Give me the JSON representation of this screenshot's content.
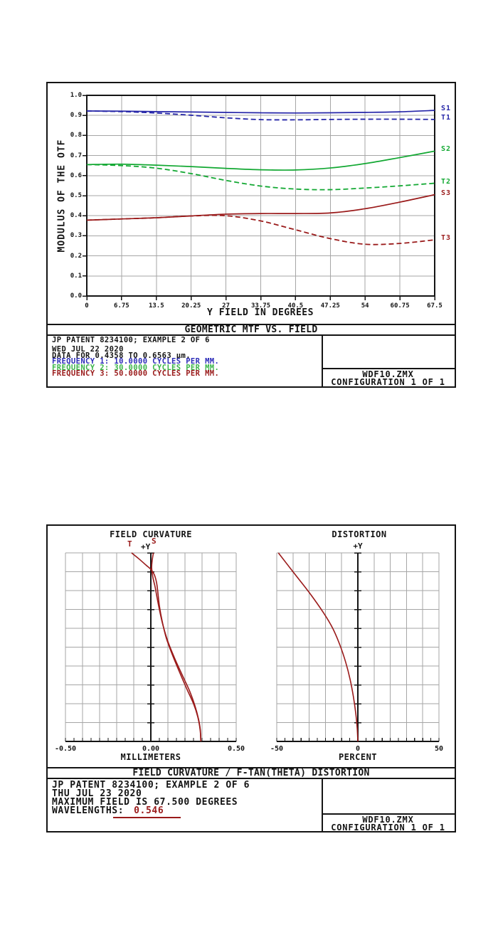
{
  "colors": {
    "blue": "#2626a8",
    "green": "#12a832",
    "green_text": "#3bb54a",
    "dark_red": "#9a1a1a",
    "grid": "#a6a6a6",
    "axis": "#141414"
  },
  "mtf_panel": {
    "title": "GEOMETRIC MTF VS. FIELD",
    "y_axis_label": "MODULUS OF THE OTF",
    "x_axis_label": "Y FIELD IN DEGREES",
    "info_line_1": "JP PATENT 8234100; EXAMPLE 2 OF 6",
    "info_line_2": "WED JUL 22 2020",
    "info_line_3": "DATA FOR 0.4358 TO 0.6563 µm.",
    "frequencies": [
      {
        "text": "FREQUENCY 1:   10.0000 CYCLES PER MM.",
        "color": "#2c2cb8"
      },
      {
        "text": "FREQUENCY 2:   30.0000 CYCLES PER MM.",
        "color": "#3bb54a"
      },
      {
        "text": "FREQUENCY 3:   50.0000 CYCLES PER MM.",
        "color": "#9a1a1a"
      }
    ],
    "file_name": "WDF10.ZMX",
    "configuration": "CONFIGURATION 1 OF 1"
  },
  "fc_panel": {
    "left_title": "FIELD CURVATURE",
    "right_title": "DISTORTION",
    "left_labels": {
      "t": "T",
      "plus_y": "+Y",
      "s": "S"
    },
    "right_plus_y": "+Y",
    "left_x_label": "MILLIMETERS",
    "right_x_label": "PERCENT",
    "title": "FIELD CURVATURE / F-TAN(THETA) DISTORTION",
    "info_line_1": "JP PATENT 8234100; EXAMPLE 2 OF 6",
    "info_line_2": "THU JUL 23 2020",
    "info_line_3": "MAXIMUM FIELD IS 67.500 DEGREES",
    "wavelengths_label": "WAVELENGTHS:",
    "wavelength_value": "0.546",
    "file_name": "WDF10.ZMX",
    "configuration": "CONFIGURATION 1 OF 1"
  },
  "chart_data": [
    {
      "id": "mtf",
      "type": "line",
      "title": "GEOMETRIC MTF VS. FIELD",
      "xlabel": "Y FIELD IN DEGREES",
      "ylabel": "MODULUS OF THE OTF",
      "xlim": [
        0,
        67.5
      ],
      "ylim": [
        0.0,
        1.0
      ],
      "grid": true,
      "legend_position": "right-of-curve-ends",
      "x": [
        0,
        6.75,
        13.5,
        20.25,
        27,
        33.75,
        40.5,
        47.25,
        54,
        60.75,
        67.5
      ],
      "x_tick_labels": [
        "0",
        "6.75",
        "13.5",
        "20.25",
        "27",
        "33.75",
        "40.5",
        "47.25",
        "54",
        "60.75",
        "67.5"
      ],
      "y_tick_labels": [
        "0.0",
        "0.1",
        "0.2",
        "0.3",
        "0.4",
        "0.5",
        "0.6",
        "0.7",
        "0.8",
        "0.9",
        "1.0"
      ],
      "series": [
        {
          "name": "S1",
          "frequency_cycles_per_mm": 10,
          "style": "solid",
          "color": "#2626a8",
          "values": [
            0.922,
            0.921,
            0.919,
            0.917,
            0.915,
            0.913,
            0.912,
            0.913,
            0.915,
            0.918,
            0.925
          ]
        },
        {
          "name": "T1",
          "frequency_cycles_per_mm": 10,
          "style": "dashed",
          "color": "#2626a8",
          "values": [
            0.922,
            0.919,
            0.912,
            0.901,
            0.888,
            0.879,
            0.878,
            0.88,
            0.881,
            0.881,
            0.88
          ]
        },
        {
          "name": "S2",
          "frequency_cycles_per_mm": 30,
          "style": "solid",
          "color": "#12a832",
          "values": [
            0.655,
            0.657,
            0.652,
            0.645,
            0.636,
            0.629,
            0.628,
            0.638,
            0.66,
            0.69,
            0.722
          ]
        },
        {
          "name": "T2",
          "frequency_cycles_per_mm": 30,
          "style": "dashed",
          "color": "#12a832",
          "values": [
            0.655,
            0.65,
            0.637,
            0.61,
            0.576,
            0.548,
            0.533,
            0.53,
            0.538,
            0.549,
            0.562
          ]
        },
        {
          "name": "S3",
          "frequency_cycles_per_mm": 50,
          "style": "solid",
          "color": "#9a1a1a",
          "values": [
            0.378,
            0.384,
            0.39,
            0.399,
            0.408,
            0.411,
            0.411,
            0.414,
            0.435,
            0.468,
            0.505
          ]
        },
        {
          "name": "T3",
          "frequency_cycles_per_mm": 50,
          "style": "dashed",
          "color": "#9a1a1a",
          "values": [
            0.378,
            0.384,
            0.39,
            0.399,
            0.4,
            0.374,
            0.33,
            0.286,
            0.258,
            0.262,
            0.28
          ]
        }
      ]
    },
    {
      "id": "field_curvature",
      "type": "line",
      "title": "FIELD CURVATURE",
      "xlabel": "MILLIMETERS",
      "xlim": [
        -0.5,
        0.5
      ],
      "x_tick_labels": [
        "-0.50",
        "0.00",
        "0.50"
      ],
      "y_axis": "+Y field height, 0 at bottom to 67.5 deg at top (fraction)",
      "grid": true,
      "series": [
        {
          "name": "T",
          "color": "#9a1a1a",
          "style": "solid",
          "points": [
            [
              -0.113,
              1.0
            ],
            [
              -0.072,
              0.97
            ],
            [
              -0.028,
              0.935
            ],
            [
              0.0,
              0.913
            ],
            [
              0.02,
              0.885
            ],
            [
              0.033,
              0.845
            ],
            [
              0.04,
              0.8
            ],
            [
              0.05,
              0.72
            ],
            [
              0.066,
              0.64
            ],
            [
              0.09,
              0.55
            ],
            [
              0.126,
              0.46
            ],
            [
              0.167,
              0.37
            ],
            [
              0.21,
              0.28
            ],
            [
              0.25,
              0.2
            ],
            [
              0.275,
              0.13
            ],
            [
              0.289,
              0.06
            ],
            [
              0.293,
              0.0
            ]
          ]
        },
        {
          "name": "S",
          "color": "#9a1a1a",
          "style": "solid",
          "points": [
            [
              0.015,
              1.0
            ],
            [
              0.008,
              0.96
            ],
            [
              0.005,
              0.92
            ],
            [
              0.012,
              0.87
            ],
            [
              0.025,
              0.82
            ],
            [
              0.035,
              0.77
            ],
            [
              0.05,
              0.7
            ],
            [
              0.07,
              0.62
            ],
            [
              0.1,
              0.53
            ],
            [
              0.14,
              0.44
            ],
            [
              0.185,
              0.35
            ],
            [
              0.226,
              0.27
            ],
            [
              0.258,
              0.19
            ],
            [
              0.279,
              0.12
            ],
            [
              0.29,
              0.06
            ],
            [
              0.293,
              0.0
            ]
          ]
        }
      ]
    },
    {
      "id": "distortion",
      "type": "line",
      "title": "DISTORTION",
      "xlabel": "PERCENT",
      "xlim": [
        -50,
        50
      ],
      "x_tick_labels": [
        "-50",
        "0",
        "50"
      ],
      "y_axis": "+Y field height, 0 at bottom to 67.5 deg at top (fraction)",
      "grid": true,
      "series": [
        {
          "name": "F-TAN(THETA) DISTORTION",
          "color": "#9a1a1a",
          "style": "solid",
          "points": [
            [
              -49,
              1.0
            ],
            [
              -40,
              0.9
            ],
            [
              -30,
              0.79
            ],
            [
              -21,
              0.68
            ],
            [
              -15.5,
              0.6
            ],
            [
              -11,
              0.51
            ],
            [
              -7.5,
              0.42
            ],
            [
              -4.8,
              0.33
            ],
            [
              -2.8,
              0.24
            ],
            [
              -1.3,
              0.15
            ],
            [
              -0.4,
              0.07
            ],
            [
              0,
              0.0
            ]
          ]
        }
      ]
    }
  ]
}
